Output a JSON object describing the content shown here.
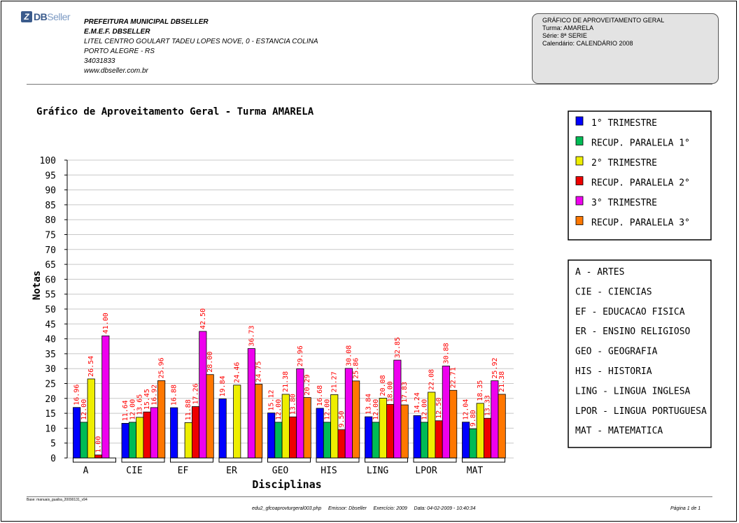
{
  "brand": {
    "logo_text": "DBSeller",
    "logo_bold": "DB",
    "logo_light": "Seller"
  },
  "header": {
    "line1": "PREFEITURA MUNICIPAL DBSELLER",
    "line2": "E.M.E.F. DBSELLER",
    "line3": "LITEL CENTRO GOULART TADEU LOPES NOVE, 0 - ESTANCIA COLINA",
    "line4": "PORTO ALEGRE - RS",
    "line5": "34031833",
    "line6": "www.dbseller.com.br"
  },
  "info": {
    "title": "GRÁFICO DE APROVEITAMENTO GERAL",
    "turma": "Turma: AMARELA",
    "serie": "Série: 8ª SERIE",
    "calendario": "Calendário: CALENDÁRIO 2008"
  },
  "footer": {
    "base": "Base: manuais_guaiba_20090131_v94",
    "middle": "edu2_gfcoaprovturgeral003.php     Emissor: Dbseller     Exercício: 2009     Data: 04-02-2009 - 10:40:34",
    "page": "Página 1 de 1"
  },
  "colors": {
    "s1": "#0000ff",
    "s2": "#00bb55",
    "s3": "#eeee00",
    "s4": "#ee0000",
    "s5": "#ee00ee",
    "s6": "#ff7700",
    "label": "#ff0000",
    "grid": "#c8c8c8"
  },
  "chart_data": {
    "type": "bar",
    "title": "Gráfico de Aproveitamento Geral - Turma AMARELA",
    "xlabel": "Disciplinas",
    "ylabel": "Notas",
    "ylim": [
      0,
      100
    ],
    "yticks": [
      "0",
      "5",
      "10",
      "15",
      "20",
      "25",
      "30",
      "35",
      "40",
      "45",
      "50",
      "55",
      "60",
      "65",
      "70",
      "75",
      "80",
      "85",
      "90",
      "95",
      "100"
    ],
    "grid": true,
    "legend_position": "right",
    "categories": [
      "A",
      "CIE",
      "EF",
      "ER",
      "GEO",
      "HIS",
      "LING",
      "LPOR",
      "MAT"
    ],
    "series": [
      {
        "name": "1° TRIMESTRE",
        "values": [
          16.96,
          11.64,
          16.88,
          19.84,
          15.12,
          16.68,
          13.84,
          14.24,
          12.04
        ],
        "labels": [
          "16.96",
          "11.64",
          "16.88",
          "19.84",
          "15.12",
          "16.68",
          "13.84",
          "14.24",
          "12.04"
        ]
      },
      {
        "name": "RECUP. PARALELA 1°",
        "values": [
          12.0,
          12.0,
          null,
          null,
          12.0,
          12.0,
          12.0,
          12.0,
          9.8
        ],
        "labels": [
          "12.00",
          "12.00",
          "",
          "",
          "12.00",
          "12.00",
          "12.00",
          "12.00",
          "9.80"
        ]
      },
      {
        "name": "2° TRIMESTRE",
        "values": [
          26.54,
          13.65,
          11.88,
          24.46,
          21.38,
          21.27,
          20.08,
          22.08,
          18.35
        ],
        "labels": [
          "26.54",
          "13.65",
          "11.88",
          "24.46",
          "21.38",
          "21.27",
          "20.08",
          "22.08",
          "18.35"
        ]
      },
      {
        "name": "RECUP. PARALELA 2°",
        "values": [
          1.0,
          15.45,
          17.26,
          null,
          13.8,
          9.5,
          18.0,
          12.5,
          13.33
        ],
        "labels": [
          "1.00",
          "15.45",
          "17.26",
          "",
          "13.80",
          "9.50",
          "18.00",
          "12.50",
          "13.33"
        ]
      },
      {
        "name": "3° TRIMESTRE",
        "values": [
          41.0,
          16.92,
          42.5,
          36.73,
          29.96,
          30.08,
          32.85,
          30.88,
          25.92
        ],
        "labels": [
          "41.00",
          "16.92",
          "42.50",
          "36.73",
          "29.96",
          "30.08",
          "32.85",
          "30.88",
          "25.92"
        ]
      },
      {
        "name": "RECUP. PARALELA 3°",
        "values": [
          null,
          25.96,
          28.0,
          24.75,
          20.29,
          25.86,
          17.83,
          22.71,
          21.38
        ],
        "labels": [
          "",
          "25.96",
          "28.00",
          "24.75",
          "20.29",
          "25.86",
          "17.83",
          "22.71",
          "21.38"
        ]
      }
    ],
    "subject_legend": [
      "A - ARTES",
      "CIE - CIENCIAS",
      "EF - EDUCACAO FISICA",
      "ER - ENSINO RELIGIOSO",
      "GEO - GEOGRAFIA",
      "HIS - HISTORIA",
      "LING - LINGUA INGLESA",
      "LPOR - LINGUA PORTUGUESA",
      "MAT - MATEMATICA"
    ]
  }
}
